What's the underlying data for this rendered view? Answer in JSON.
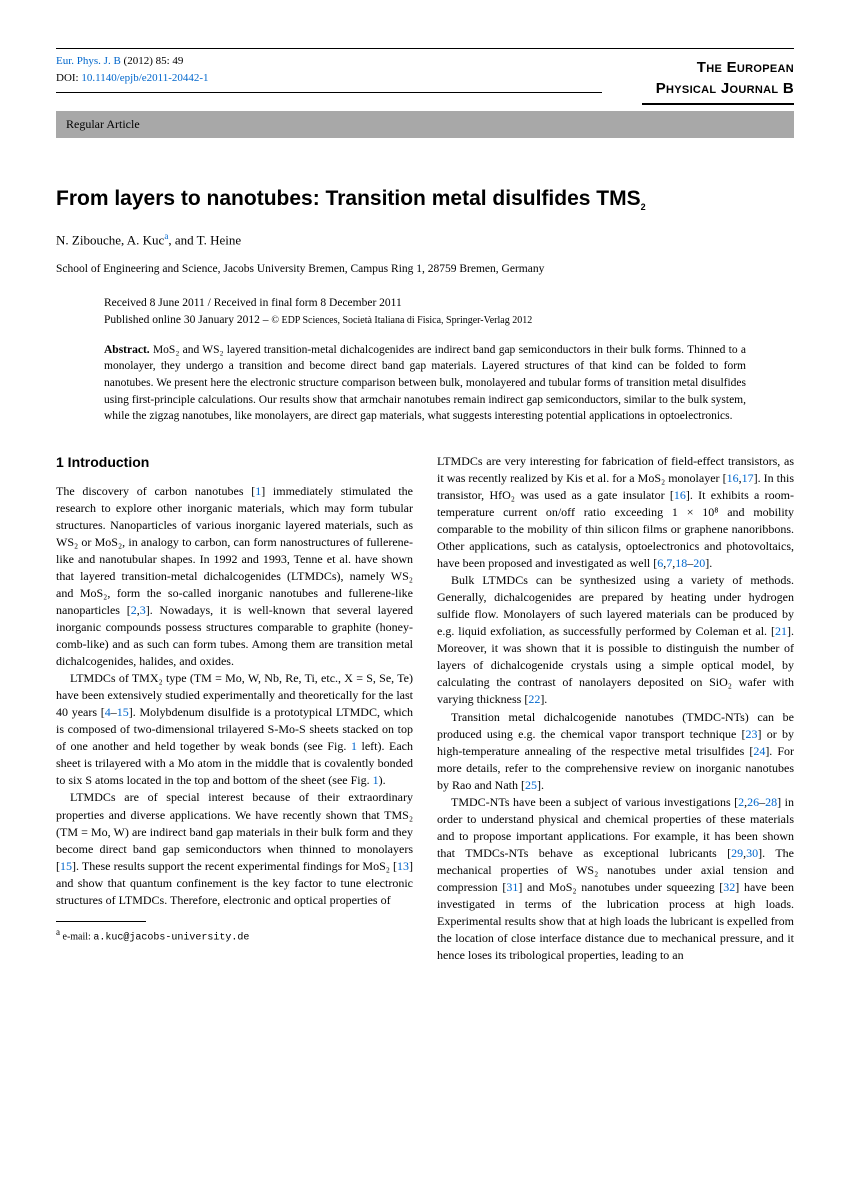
{
  "header": {
    "journal_ref": "Eur. Phys. J. B",
    "year_vol": "(2012) 85: 49",
    "doi_label": "DOI:",
    "doi": "10.1140/epjb/e2011-20442-1",
    "article_type": "Regular Article",
    "journal_name_1": "The European",
    "journal_name_2": "Physical Journal B"
  },
  "title": "From layers to nanotubes: Transition metal disulfides TMS",
  "title_sub": "2",
  "authors": {
    "a1": "N. Zibouche,",
    "a2": "A. Kuc",
    "a2_sup": "a",
    "a3": ", and T. Heine"
  },
  "affiliation": "School of Engineering and Science, Jacobs University Bremen, Campus Ring 1, 28759 Bremen, Germany",
  "dates": {
    "received": "Received 8 June 2011 / Received in final form 8 December 2011",
    "published": "Published online 30 January 2012 – ",
    "copyright": "© EDP Sciences, Società Italiana di Fisica, Springer-Verlag 2012"
  },
  "abstract": {
    "label": "Abstract.",
    "text": " MoS₂ and WS₂ layered transition-metal dichalcogenides are indirect band gap semiconductors in their bulk forms. Thinned to a monolayer, they undergo a transition and become direct band gap materials. Layered structures of that kind can be folded to form nanotubes. We present here the electronic structure comparison between bulk, monolayered and tubular forms of transition metal disulfides using first-principle calculations. Our results show that armchair nanotubes remain indirect gap semiconductors, similar to the bulk system, while the zigzag nanotubes, like monolayers, are direct gap materials, what suggests interesting potential applications in optoelectronics."
  },
  "section1": "1 Introduction",
  "col1": {
    "p1a": "The discovery of carbon nanotubes [",
    "r1": "1",
    "p1b": "] immediately stimulated the research to explore other inorganic materials, which may form tubular structures. Nanoparticles of various inorganic layered materials, such as WS₂ or MoS₂, in analogy to carbon, can form nanostructures of fullerene-like and nanotubular shapes. In 1992 and 1993, Tenne et al. have shown that layered transition-metal dichalcogenides (LTMDCs), namely WS₂ and MoS₂, form the so-called inorganic nanotubes and fullerene-like nanoparticles [",
    "r2": "2",
    "r3": "3",
    "p1c": "]. Nowadays, it is well-known that several layered inorganic compounds possess structures comparable to graphite (honey-comb-like) and as such can form tubes. Among them are transition metal dichalcogenides, halides, and oxides.",
    "p2a": "LTMDCs of TMX₂ type (TM = Mo, W, Nb, Re, Ti, etc., X = S, Se, Te) have been extensively studied experimentally and theoretically for the last 40 years [",
    "r4": "4",
    "r5": "15",
    "p2b": "]. Molybdenum disulfide is a prototypical LTMDC, which is composed of two-dimensional trilayered S-Mo-S sheets stacked on top of one another and held together by weak bonds (see Fig. ",
    "fig1a": "1",
    "p2c": " left). Each sheet is trilayered with a Mo atom in the middle that is covalently bonded to six S atoms located in the top and bottom of the sheet (see Fig. ",
    "fig1b": "1",
    "p2d": ").",
    "p3a": "LTMDCs are of special interest because of their extraordinary properties and diverse applications. We have recently shown that TMS₂ (TM = Mo, W) are indirect band gap materials in their bulk form and they become direct band gap semiconductors when thinned to monolayers [",
    "r15": "15",
    "p3b": "]. These results support the recent experimental findings for MoS₂ [",
    "r13": "13",
    "p3c": "] and show that quantum confinement is the key factor to tune electronic structures of LTMDCs. Therefore, electronic and optical properties of"
  },
  "col2": {
    "p1a": "LTMDCs are very interesting for fabrication of field-effect transistors, as it was recently realized by Kis et al. for a MoS₂ monolayer [",
    "r16": "16",
    "r17": "17",
    "p1b": "]. In this transistor, HfO₂ was used as a gate insulator [",
    "r16b": "16",
    "p1c": "]. It exhibits a room-temperature current on/off ratio exceeding 1 × 10⁸ and mobility comparable to the mobility of thin silicon films or graphene nanoribbons. Other applications, such as catalysis, optoelectronics and photovoltaics, have been proposed and investigated as well [",
    "r6": "6",
    "r7": "7",
    "r18": "18",
    "r20": "20",
    "p1d": "].",
    "p2a": "Bulk LTMDCs can be synthesized using a variety of methods. Generally, dichalcogenides are prepared by heating under hydrogen sulfide flow. Monolayers of such layered materials can be produced by e.g. liquid exfoliation, as successfully performed by Coleman et al. [",
    "r21": "21",
    "p2b": "]. Moreover, it was shown that it is possible to distinguish the number of layers of dichalcogenide crystals using a simple optical model, by calculating the contrast of nanolayers deposited on SiO₂ wafer with varying thickness [",
    "r22": "22",
    "p2c": "].",
    "p3a": "Transition metal dichalcogenide nanotubes (TMDC-NTs) can be produced using e.g. the chemical vapor transport technique [",
    "r23": "23",
    "p3b": "] or by high-temperature annealing of the respective metal trisulfides [",
    "r24": "24",
    "p3c": "]. For more details, refer to the comprehensive review on inorganic nanotubes by Rao and Nath [",
    "r25": "25",
    "p3d": "].",
    "p4a": "TMDC-NTs have been a subject of various investigations [",
    "r2b": "2",
    "r26": "26",
    "r28": "28",
    "p4b": "] in order to understand physical and chemical properties of these materials and to propose important applications. For example, it has been shown that TMDCs-NTs behave as exceptional lubricants [",
    "r29": "29",
    "r30": "30",
    "p4c": "]. The mechanical properties of WS₂ nanotubes under axial tension and compression [",
    "r31": "31",
    "p4d": "] and MoS₂ nanotubes under squeezing [",
    "r32": "32",
    "p4e": "] have been investigated in terms of the lubrication process at high loads. Experimental results show that at high loads the lubricant is expelled from the location of close interface distance due to mechanical pressure, and it hence loses its tribological properties, leading to an"
  },
  "footnote": {
    "sup": "a",
    "label": "e-mail:",
    "email": "a.kuc@jacobs-university.de"
  }
}
